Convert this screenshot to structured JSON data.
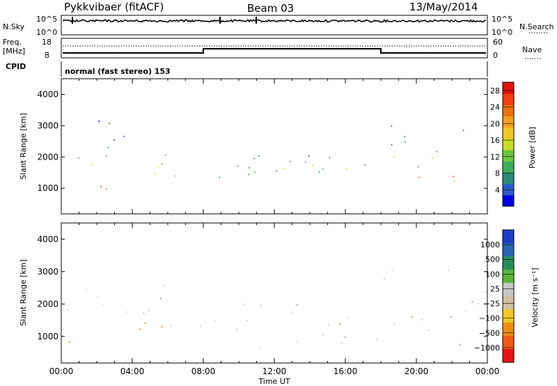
{
  "header": {
    "station": "Pykkvibaer (fitACF)",
    "beam": "Beam 03",
    "date": "13/May/2014"
  },
  "strip": {
    "nsky_label": "N.Sky",
    "nsky_ticks": [
      "10^5",
      "10^0"
    ],
    "nsearch_label": "N.Search",
    "nsearch_ticks": [
      "10^5",
      "10^0"
    ],
    "freq_label_1": "Freq.",
    "freq_label_2": "[MHz]",
    "freq_ticks": [
      "18",
      "8"
    ],
    "nave_label": "Nave",
    "nave_ticks": [
      "60",
      "0"
    ],
    "cpid_label": "CPID",
    "cpid_value": "normal (fast stereo) 153"
  },
  "colors": {
    "power": [
      "#0000e0",
      "#2b5cc8",
      "#2a8a7a",
      "#3cac5a",
      "#6cc83c",
      "#c8dc28",
      "#f0c828",
      "#f0a020",
      "#f07010",
      "#f03c10",
      "#e01010"
    ],
    "velocity": [
      "#1e3cc8",
      "#2a64b4",
      "#2a8c5a",
      "#5ab43c",
      "#c8c8c8",
      "#d0c0a0",
      "#f0c828",
      "#f08c14",
      "#f05a14",
      "#e81414"
    ],
    "background_scatter": "#c0c0c0"
  },
  "chart_data": [
    {
      "type": "heatmap",
      "name": "power",
      "ylabel": "Slant Range [km]",
      "yticks": [
        1000,
        2000,
        3000,
        4000
      ],
      "ylim": [
        180,
        4500
      ],
      "xlim": [
        0,
        24
      ],
      "xticks": [
        "00:00",
        "04:00",
        "08:00",
        "12:00",
        "16:00",
        "20:00",
        "00:00"
      ],
      "colorbar_label": "Power [dB]",
      "colorbar_ticks": [
        "4",
        "8",
        "12",
        "16",
        "20",
        "24",
        "28"
      ],
      "colorbar_range": [
        0,
        30
      ],
      "bands": [
        {
          "t0": 0.0,
          "t1": 8.0,
          "r0": 1300,
          "r1": 1900,
          "level": 22
        },
        {
          "t0": 2.0,
          "t1": 3.8,
          "r0": 700,
          "r1": 1500,
          "level": 28
        },
        {
          "t0": 0.0,
          "t1": 6.0,
          "r0": 1800,
          "r1": 2400,
          "level": 10
        },
        {
          "t0": 0.0,
          "t1": 5.0,
          "r0": 2500,
          "r1": 3200,
          "level": 6
        },
        {
          "t0": 8.0,
          "t1": 18.0,
          "r0": 1400,
          "r1": 1900,
          "level": 18
        },
        {
          "t0": 8.0,
          "t1": 18.0,
          "r0": 1100,
          "r1": 2200,
          "level": 8
        },
        {
          "t0": 18.0,
          "t1": 24.0,
          "r0": 1200,
          "r1": 1650,
          "level": 28
        },
        {
          "t0": 18.0,
          "t1": 24.0,
          "r0": 1700,
          "r1": 2300,
          "level": 14
        },
        {
          "t0": 18.0,
          "t1": 24.0,
          "r0": 2300,
          "r1": 3100,
          "level": 6
        }
      ]
    },
    {
      "type": "heatmap",
      "name": "velocity",
      "ylabel": "Slant Range [km]",
      "yticks": [
        1000,
        2000,
        3000,
        4000
      ],
      "ylim": [
        180,
        4500
      ],
      "xlim": [
        0,
        24
      ],
      "xticks": [
        "00:00",
        "04:00",
        "08:00",
        "12:00",
        "16:00",
        "20:00",
        "00:00"
      ],
      "xlabel": "Time UT",
      "colorbar_label": "Velocity [m s⁻¹]",
      "colorbar_ticks": [
        "1000",
        "500",
        "100",
        "25",
        "−25",
        "−100",
        "−500",
        "−1000"
      ],
      "bands": [
        {
          "t0": 0.0,
          "t1": 8.0,
          "r0": 1300,
          "r1": 2600,
          "level": 4
        },
        {
          "t0": 2.0,
          "t1": 6.0,
          "r0": 800,
          "r1": 1500,
          "level": 7
        },
        {
          "t0": 0.0,
          "t1": 1.5,
          "r0": 600,
          "r1": 900,
          "level": 7
        },
        {
          "t0": 8.0,
          "t1": 18.0,
          "r0": 1200,
          "r1": 2100,
          "level": 4
        },
        {
          "t0": 8.0,
          "t1": 18.0,
          "r0": 600,
          "r1": 1100,
          "level": 4
        },
        {
          "t0": 18.0,
          "t1": 24.0,
          "r0": 1100,
          "r1": 3100,
          "level": 4
        },
        {
          "t0": 20.5,
          "t1": 23.8,
          "r0": 600,
          "r1": 900,
          "level": 3
        }
      ]
    }
  ]
}
